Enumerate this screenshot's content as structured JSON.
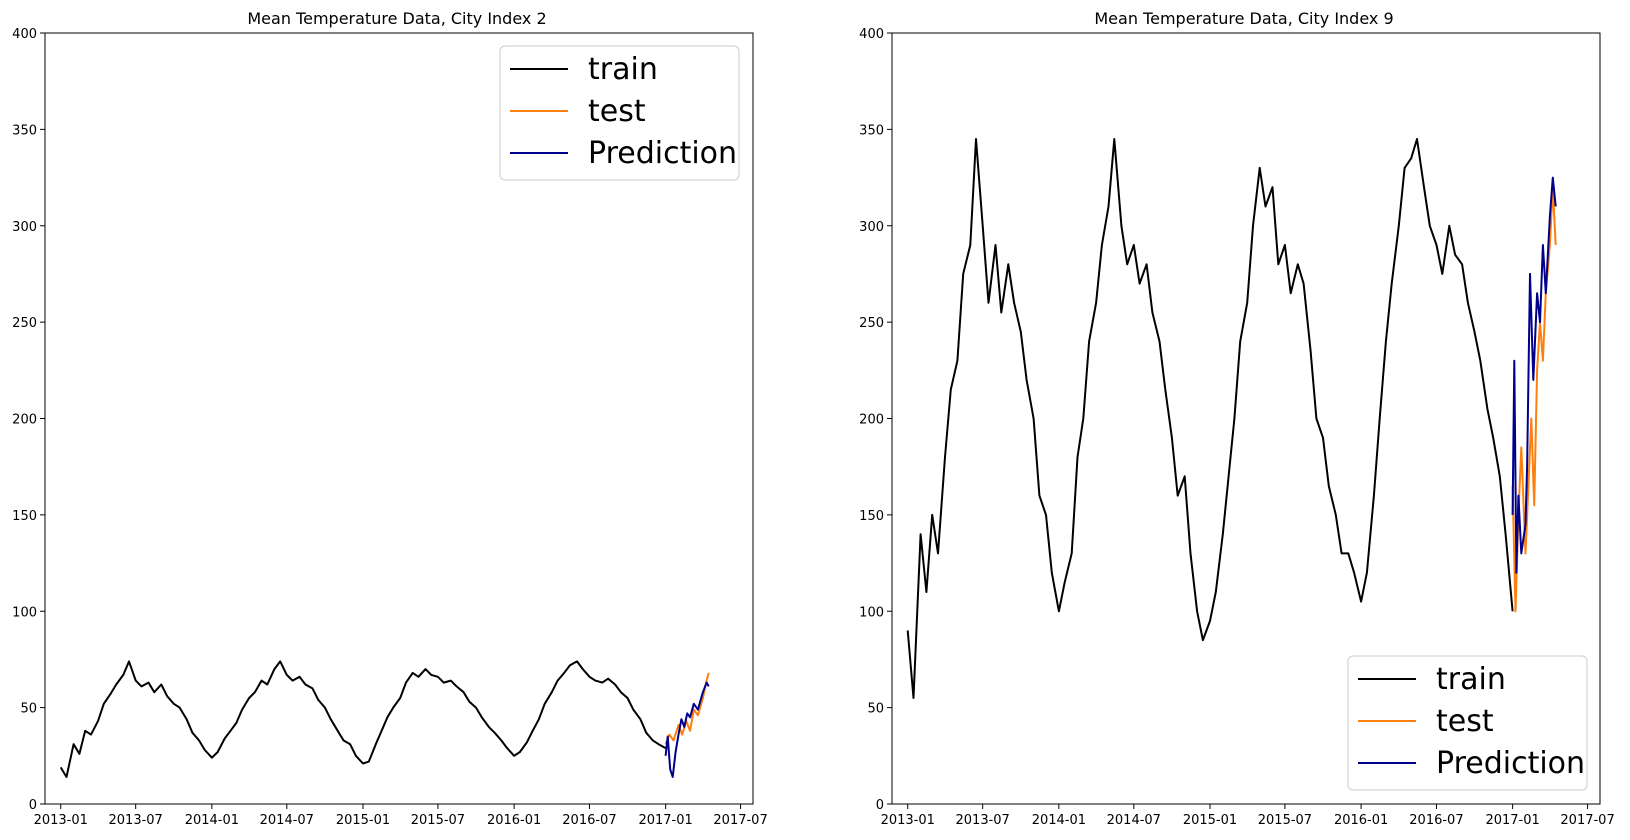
{
  "chart_data": [
    {
      "type": "line",
      "title": "Mean Temperature Data, City Index 2",
      "xlabel": "",
      "ylabel": "",
      "xlim": [
        "2012-11-24",
        "2017-07-31"
      ],
      "ylim": [
        0,
        400
      ],
      "x_tick_labels": [
        "2013-01",
        "2013-07",
        "2014-01",
        "2014-07",
        "2015-01",
        "2015-07",
        "2016-01",
        "2016-07",
        "2017-01",
        "2017-07"
      ],
      "y_tick_labels": [
        "0",
        "50",
        "100",
        "150",
        "200",
        "250",
        "300",
        "350",
        "400"
      ],
      "legend_position": "top-right",
      "grid": false,
      "series": [
        {
          "name": "train",
          "color": "#000000",
          "x": [
            "2013-01-01",
            "2013-01-15",
            "2013-02-01",
            "2013-02-15",
            "2013-03-01",
            "2013-03-15",
            "2013-04-01",
            "2013-04-15",
            "2013-05-01",
            "2013-05-15",
            "2013-06-01",
            "2013-06-15",
            "2013-07-01",
            "2013-07-15",
            "2013-08-01",
            "2013-08-15",
            "2013-09-01",
            "2013-09-15",
            "2013-10-01",
            "2013-10-15",
            "2013-11-01",
            "2013-11-15",
            "2013-12-01",
            "2013-12-15",
            "2014-01-01",
            "2014-01-15",
            "2014-02-01",
            "2014-02-15",
            "2014-03-01",
            "2014-03-15",
            "2014-04-01",
            "2014-04-15",
            "2014-05-01",
            "2014-05-15",
            "2014-06-01",
            "2014-06-15",
            "2014-07-01",
            "2014-07-15",
            "2014-08-01",
            "2014-08-15",
            "2014-09-01",
            "2014-09-15",
            "2014-10-01",
            "2014-10-15",
            "2014-11-01",
            "2014-11-15",
            "2014-12-01",
            "2014-12-15",
            "2015-01-01",
            "2015-01-15",
            "2015-02-01",
            "2015-02-15",
            "2015-03-01",
            "2015-03-15",
            "2015-04-01",
            "2015-04-15",
            "2015-05-01",
            "2015-05-15",
            "2015-06-01",
            "2015-06-15",
            "2015-07-01",
            "2015-07-15",
            "2015-08-01",
            "2015-08-15",
            "2015-09-01",
            "2015-09-15",
            "2015-10-01",
            "2015-10-15",
            "2015-11-01",
            "2015-11-15",
            "2015-12-01",
            "2015-12-15",
            "2016-01-01",
            "2016-01-15",
            "2016-02-01",
            "2016-02-15",
            "2016-03-01",
            "2016-03-15",
            "2016-04-01",
            "2016-04-15",
            "2016-05-01",
            "2016-05-15",
            "2016-06-01",
            "2016-06-15",
            "2016-07-01",
            "2016-07-15",
            "2016-08-01",
            "2016-08-15",
            "2016-09-01",
            "2016-09-15",
            "2016-10-01",
            "2016-10-15",
            "2016-11-01",
            "2016-11-15",
            "2016-12-01",
            "2016-12-15",
            "2017-01-01"
          ],
          "y": [
            19,
            14,
            31,
            26,
            38,
            36,
            43,
            52,
            57,
            62,
            67,
            74,
            64,
            61,
            63,
            58,
            62,
            56,
            52,
            50,
            44,
            37,
            33,
            28,
            24,
            27,
            34,
            38,
            42,
            49,
            55,
            58,
            64,
            62,
            70,
            74,
            67,
            64,
            66,
            62,
            60,
            54,
            50,
            44,
            38,
            33,
            31,
            25,
            21,
            22,
            31,
            38,
            45,
            50,
            55,
            63,
            68,
            66,
            70,
            67,
            66,
            63,
            64,
            61,
            58,
            53,
            50,
            45,
            40,
            37,
            33,
            29,
            25,
            27,
            32,
            38,
            44,
            52,
            58,
            64,
            68,
            72,
            74,
            70,
            66,
            64,
            63,
            65,
            62,
            58,
            55,
            49,
            44,
            37,
            33,
            31,
            29
          ]
        },
        {
          "name": "test",
          "color": "#ff7f0e",
          "x": [
            "2017-01-01",
            "2017-01-10",
            "2017-01-20",
            "2017-02-01",
            "2017-02-10",
            "2017-02-20",
            "2017-03-01",
            "2017-03-10",
            "2017-03-20",
            "2017-04-01",
            "2017-04-10",
            "2017-04-15"
          ],
          "y": [
            31,
            36,
            33,
            41,
            36,
            43,
            38,
            49,
            46,
            55,
            64,
            68
          ]
        },
        {
          "name": "Prediction",
          "color": "#00008b",
          "x": [
            "2017-01-01",
            "2017-01-06",
            "2017-01-12",
            "2017-01-18",
            "2017-01-25",
            "2017-02-01",
            "2017-02-08",
            "2017-02-15",
            "2017-02-22",
            "2017-03-01",
            "2017-03-10",
            "2017-03-20",
            "2017-04-01",
            "2017-04-10",
            "2017-04-15"
          ],
          "y": [
            25,
            35,
            18,
            14,
            27,
            36,
            44,
            40,
            47,
            45,
            52,
            49,
            58,
            63,
            61
          ]
        }
      ]
    },
    {
      "type": "line",
      "title": "Mean Temperature Data, City Index 9",
      "xlabel": "",
      "ylabel": "",
      "xlim": [
        "2012-11-24",
        "2017-07-31"
      ],
      "ylim": [
        0,
        400
      ],
      "x_tick_labels": [
        "2013-01",
        "2013-07",
        "2014-01",
        "2014-07",
        "2015-01",
        "2015-07",
        "2016-01",
        "2016-07",
        "2017-01",
        "2017-07"
      ],
      "y_tick_labels": [
        "0",
        "50",
        "100",
        "150",
        "200",
        "250",
        "300",
        "350",
        "400"
      ],
      "legend_position": "bottom-right",
      "grid": false,
      "series": [
        {
          "name": "train",
          "color": "#000000",
          "x": [
            "2013-01-01",
            "2013-01-15",
            "2013-02-01",
            "2013-02-15",
            "2013-03-01",
            "2013-03-15",
            "2013-04-01",
            "2013-04-15",
            "2013-05-01",
            "2013-05-15",
            "2013-06-01",
            "2013-06-15",
            "2013-07-01",
            "2013-07-15",
            "2013-08-01",
            "2013-08-15",
            "2013-09-01",
            "2013-09-15",
            "2013-10-01",
            "2013-10-15",
            "2013-11-01",
            "2013-11-15",
            "2013-12-01",
            "2013-12-15",
            "2014-01-01",
            "2014-01-15",
            "2014-02-01",
            "2014-02-15",
            "2014-03-01",
            "2014-03-15",
            "2014-04-01",
            "2014-04-15",
            "2014-05-01",
            "2014-05-15",
            "2014-06-01",
            "2014-06-15",
            "2014-07-01",
            "2014-07-15",
            "2014-08-01",
            "2014-08-15",
            "2014-09-01",
            "2014-09-15",
            "2014-10-01",
            "2014-10-15",
            "2014-11-01",
            "2014-11-15",
            "2014-12-01",
            "2014-12-15",
            "2015-01-01",
            "2015-01-15",
            "2015-02-01",
            "2015-02-15",
            "2015-03-01",
            "2015-03-15",
            "2015-04-01",
            "2015-04-15",
            "2015-05-01",
            "2015-05-15",
            "2015-06-01",
            "2015-06-15",
            "2015-07-01",
            "2015-07-15",
            "2015-08-01",
            "2015-08-15",
            "2015-09-01",
            "2015-09-15",
            "2015-10-01",
            "2015-10-15",
            "2015-11-01",
            "2015-11-15",
            "2015-12-01",
            "2015-12-15",
            "2016-01-01",
            "2016-01-15",
            "2016-02-01",
            "2016-02-15",
            "2016-03-01",
            "2016-03-15",
            "2016-04-01",
            "2016-04-15",
            "2016-05-01",
            "2016-05-15",
            "2016-06-01",
            "2016-06-15",
            "2016-07-01",
            "2016-07-15",
            "2016-08-01",
            "2016-08-15",
            "2016-09-01",
            "2016-09-15",
            "2016-10-01",
            "2016-10-15",
            "2016-11-01",
            "2016-11-15",
            "2016-12-01",
            "2016-12-15",
            "2017-01-01"
          ],
          "y": [
            90,
            55,
            140,
            110,
            150,
            130,
            180,
            215,
            230,
            275,
            290,
            345,
            300,
            260,
            290,
            255,
            280,
            260,
            245,
            220,
            200,
            160,
            150,
            120,
            100,
            115,
            130,
            180,
            200,
            240,
            260,
            290,
            310,
            345,
            300,
            280,
            290,
            270,
            280,
            255,
            240,
            215,
            190,
            160,
            170,
            130,
            100,
            85,
            95,
            110,
            140,
            170,
            200,
            240,
            260,
            300,
            330,
            310,
            320,
            280,
            290,
            265,
            280,
            270,
            235,
            200,
            190,
            165,
            150,
            130,
            130,
            120,
            105,
            120,
            160,
            200,
            240,
            270,
            300,
            330,
            335,
            345,
            320,
            300,
            290,
            275,
            300,
            285,
            280,
            260,
            245,
            230,
            205,
            190,
            170,
            140,
            100
          ]
        },
        {
          "name": "test",
          "color": "#ff7f0e",
          "x": [
            "2017-01-01",
            "2017-01-08",
            "2017-01-15",
            "2017-01-22",
            "2017-02-01",
            "2017-02-08",
            "2017-02-15",
            "2017-02-22",
            "2017-03-01",
            "2017-03-08",
            "2017-03-15",
            "2017-03-22",
            "2017-04-01",
            "2017-04-08",
            "2017-04-15"
          ],
          "y": [
            165,
            100,
            150,
            185,
            130,
            165,
            200,
            155,
            225,
            250,
            230,
            265,
            290,
            320,
            290
          ]
        },
        {
          "name": "Prediction",
          "color": "#00008b",
          "x": [
            "2017-01-01",
            "2017-01-05",
            "2017-01-10",
            "2017-01-15",
            "2017-01-22",
            "2017-02-01",
            "2017-02-05",
            "2017-02-12",
            "2017-02-20",
            "2017-03-01",
            "2017-03-08",
            "2017-03-15",
            "2017-03-22",
            "2017-04-01",
            "2017-04-08",
            "2017-04-15"
          ],
          "y": [
            150,
            230,
            120,
            160,
            130,
            145,
            175,
            275,
            220,
            265,
            250,
            290,
            265,
            305,
            325,
            310
          ]
        }
      ]
    }
  ]
}
